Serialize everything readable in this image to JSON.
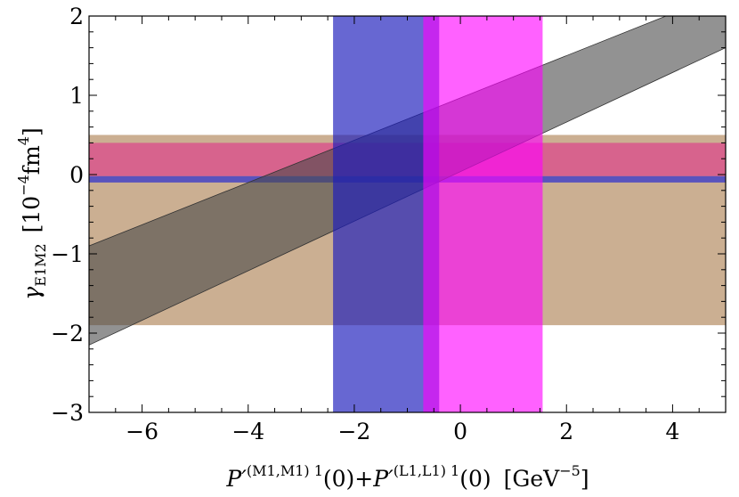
{
  "chart_data": {
    "type": "area",
    "title": "",
    "xlabel": {
      "p1": "P",
      "prime1": "′",
      "sup1": "(M1,M1) 1",
      "mid": "(0)+",
      "p2": "P",
      "prime2": "′",
      "sup2": "(L1,L1) 1",
      "end": "(0)",
      "unit_open": "[GeV",
      "unit_exp": "−5",
      "unit_close": "]"
    },
    "ylabel": {
      "gamma": "γ",
      "sub": "E1M2",
      "unit_open": "[10",
      "unit_exp1": "−4",
      "unit_mid": "fm",
      "unit_exp2": "4",
      "unit_close": "]"
    },
    "xlim": [
      -7,
      5
    ],
    "ylim": [
      -3,
      2
    ],
    "x_ticks": [
      -6,
      -4,
      -2,
      0,
      2,
      4
    ],
    "x_tick_labels": [
      "−6",
      "−4",
      "−2",
      "0",
      "2",
      "4"
    ],
    "y_ticks": [
      -3,
      -2,
      -1,
      0,
      1,
      2
    ],
    "y_tick_labels": [
      "−3",
      "−2",
      "−1",
      "0",
      "1",
      "2"
    ],
    "horizontal_bands": [
      {
        "id": "tan-band",
        "ymin": -1.9,
        "ymax": 0.5,
        "color": "#a8794a",
        "opacity": 0.6
      },
      {
        "id": "magenta-band",
        "ymin": -0.02,
        "ymax": 0.4,
        "color": "#e0308a",
        "opacity": 0.6
      },
      {
        "id": "blue-band",
        "ymin": -0.1,
        "ymax": -0.02,
        "color": "#3c3cc8",
        "opacity": 0.8
      }
    ],
    "vertical_bands": [
      {
        "id": "blue-vband",
        "xmin": -2.4,
        "xmax": -0.4,
        "color": "#1c1cbc",
        "opacity": 0.67
      },
      {
        "id": "magenta-vband",
        "xmin": -0.7,
        "xmax": 1.55,
        "color": "#ff00ff",
        "opacity": 0.62
      }
    ],
    "diagonal_band": {
      "id": "gray-diagonal-band",
      "lower": [
        [
          -7,
          -2.15
        ],
        [
          5,
          1.6
        ]
      ],
      "upper": [
        [
          -7,
          -0.9
        ],
        [
          5,
          2.3
        ]
      ],
      "color": "#4a4a4a",
      "opacity": 0.6
    }
  }
}
